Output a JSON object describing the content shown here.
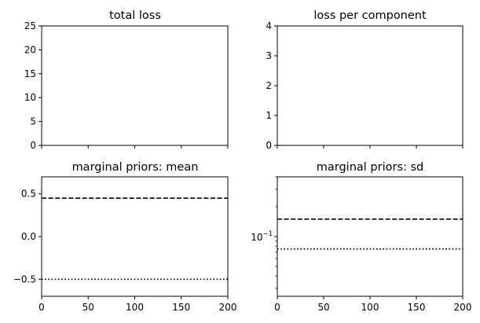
{
  "chart_data": [
    {
      "type": "line",
      "title": "total loss",
      "xlabel": "",
      "ylabel": "",
      "xlim": [
        0,
        200
      ],
      "ylim": [
        0,
        25
      ],
      "xticks": [
        0,
        50,
        100,
        150,
        200
      ],
      "xtick_labels_shown": false,
      "yticks": [
        0,
        5,
        10,
        15,
        20,
        25
      ],
      "ytick_labels": [
        "0",
        "5",
        "10",
        "15",
        "20",
        "25"
      ],
      "yscale": "linear",
      "grid": false,
      "series": []
    },
    {
      "type": "line",
      "title": "loss per component",
      "xlabel": "",
      "ylabel": "",
      "xlim": [
        0,
        200
      ],
      "ylim": [
        0,
        4
      ],
      "xticks": [
        0,
        50,
        100,
        150,
        200
      ],
      "xtick_labels_shown": false,
      "yticks": [
        0,
        1,
        2,
        3,
        4
      ],
      "ytick_labels": [
        "0",
        "1",
        "2",
        "3",
        "4"
      ],
      "yscale": "linear",
      "grid": false,
      "series": []
    },
    {
      "type": "line",
      "title": "marginal priors: mean",
      "xlabel": "",
      "ylabel": "",
      "xlim": [
        0,
        200
      ],
      "ylim": [
        -0.7,
        0.7
      ],
      "xticks": [
        0,
        50,
        100,
        150,
        200
      ],
      "xtick_labels": [
        "0",
        "50",
        "100",
        "150",
        "200"
      ],
      "xtick_labels_shown": true,
      "yticks": [
        -0.5,
        0,
        0.5
      ],
      "ytick_labels": [
        "−0.5",
        "0.0",
        "0.5"
      ],
      "yscale": "linear",
      "grid": false,
      "hlines": [
        {
          "y": 0.45,
          "style": "dashed",
          "color": "#000000"
        },
        {
          "y": -0.5,
          "style": "dotted",
          "color": "#000000"
        }
      ],
      "series": []
    },
    {
      "type": "line",
      "title": "marginal priors: sd",
      "xlabel": "",
      "ylabel": "",
      "xlim": [
        0,
        200
      ],
      "ylim": [
        0.025,
        0.4
      ],
      "xticks": [
        0,
        50,
        100,
        150,
        200
      ],
      "xtick_labels": [
        "0",
        "50",
        "100",
        "150",
        "200"
      ],
      "xtick_labels_shown": true,
      "yticks": [
        0.1
      ],
      "ytick_labels": [
        "10",
        "−1"
      ],
      "yscale": "log",
      "minor_yticks": [
        0.03,
        0.04,
        0.05,
        0.06,
        0.07,
        0.08,
        0.09,
        0.2,
        0.3,
        0.4
      ],
      "grid": false,
      "hlines": [
        {
          "y": 0.15,
          "style": "dashed",
          "color": "#000000"
        },
        {
          "y": 0.075,
          "style": "dotted",
          "color": "#000000"
        }
      ],
      "series": []
    }
  ]
}
